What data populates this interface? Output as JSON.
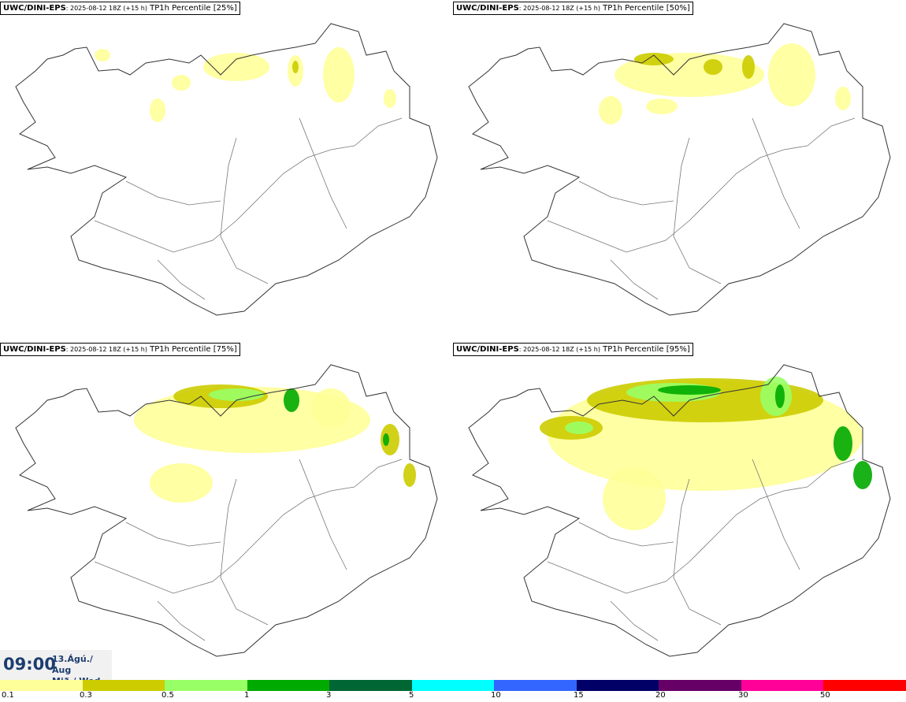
{
  "panels": [
    {
      "model": "UWC/DINI-EPS",
      "run": ": 2025-08-12 18Z (+15 h)",
      "field": " TP1h Percentile [25%]",
      "percentile": 25
    },
    {
      "model": "UWC/DINI-EPS",
      "run": ": 2025-08-12 18Z (+15 h)",
      "field": " TP1h Percentile [50%]",
      "percentile": 50
    },
    {
      "model": "UWC/DINI-EPS",
      "run": ": 2025-08-12 18Z (+15 h)",
      "field": " TP1h Percentile [75%]",
      "percentile": 75
    },
    {
      "model": "UWC/DINI-EPS",
      "run": ": 2025-08-12 18Z (+15 h)",
      "field": " TP1h Percentile [95%]",
      "percentile": 95
    }
  ],
  "valid_time": {
    "time": "09:00",
    "date_line1": "13.Ágú./ Aug",
    "date_line2": "Mið./ Wed"
  },
  "colorbar": {
    "colors": [
      "#ffff99",
      "#cccc00",
      "#99ff66",
      "#00aa00",
      "#006633",
      "#00ffff",
      "#3366ff",
      "#000066",
      "#660066",
      "#ff0099",
      "#ff0000"
    ],
    "ticks": [
      "0.1",
      "0.3",
      "0.5",
      "1",
      "3",
      "5",
      "10",
      "15",
      "20",
      "30",
      "50"
    ]
  }
}
